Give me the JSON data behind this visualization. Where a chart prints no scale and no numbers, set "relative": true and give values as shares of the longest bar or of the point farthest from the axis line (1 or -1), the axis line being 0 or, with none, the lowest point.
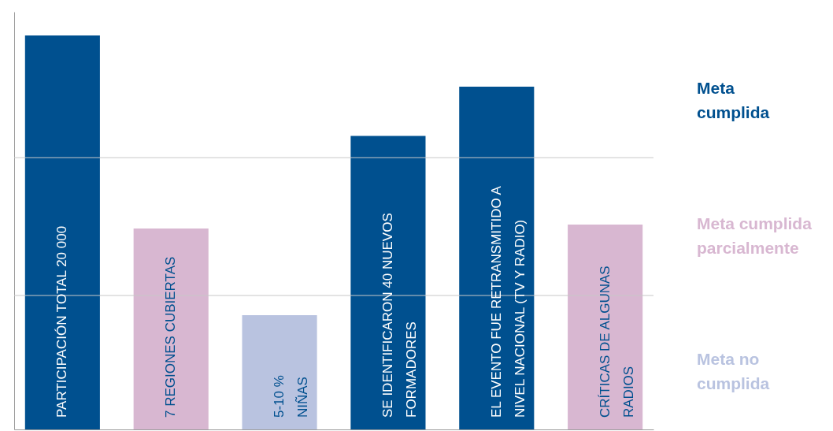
{
  "chart_data": {
    "type": "bar",
    "relative": true,
    "tick_labels": false,
    "categories": [
      "PARTICIPACIÓN TOTAL 20 000",
      "7 REGIONES CUBIERTAS",
      "5-10 %\nNIÑAS",
      "SE IDENTIFICARON 40 NUEVOS\nFORMADORES",
      "EL EVENTO FUE RETRANSMITIDO A\nNIVEL NACIONAL (TV Y RADIO)",
      "CRÍTICAS DE ALGUNAS\nRADIOS"
    ],
    "values": [
      1,
      0.51,
      0.29,
      0.745,
      0.87,
      0.52
    ],
    "colors": [
      "#00508f",
      "#d8b7d1",
      "#b9c3e0",
      "#00508f",
      "#00508f",
      "#d8b7d1"
    ],
    "ref_lines": [
      {
        "axis": "y",
        "value": 0.69,
        "color": "#c8c8c8"
      },
      {
        "axis": "y",
        "value": 0.34,
        "color": "#c8c8c8"
      }
    ],
    "annotations": [
      "Meta\ncumplida",
      "Meta cumplida\nparcialmente",
      "Meta no\ncumplida"
    ]
  }
}
